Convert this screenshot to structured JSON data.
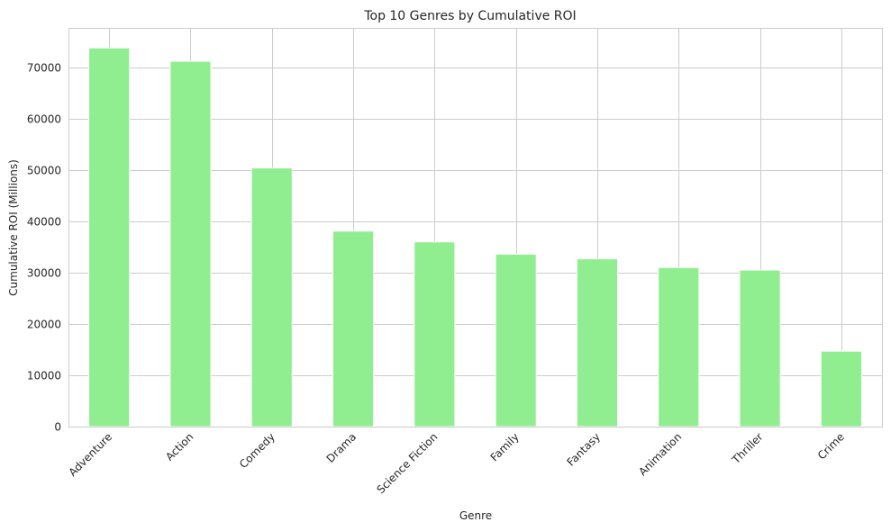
{
  "chart_data": {
    "type": "bar",
    "title": "Top 10 Genres by Cumulative ROI",
    "xlabel": "Genre",
    "ylabel": "Cumulative ROI (Millions)",
    "categories": [
      "Adventure",
      "Action",
      "Comedy",
      "Drama",
      "Science Fiction",
      "Family",
      "Fantasy",
      "Animation",
      "Thriller",
      "Crime"
    ],
    "values": [
      73800,
      71200,
      50400,
      38100,
      36000,
      33600,
      32700,
      31000,
      30500,
      14700
    ],
    "ylim": [
      0,
      77700
    ],
    "yticks": [
      0,
      10000,
      20000,
      30000,
      40000,
      50000,
      60000,
      70000
    ],
    "grid": true,
    "bar_color": "#90ee90",
    "grid_color": "#cccccc"
  }
}
